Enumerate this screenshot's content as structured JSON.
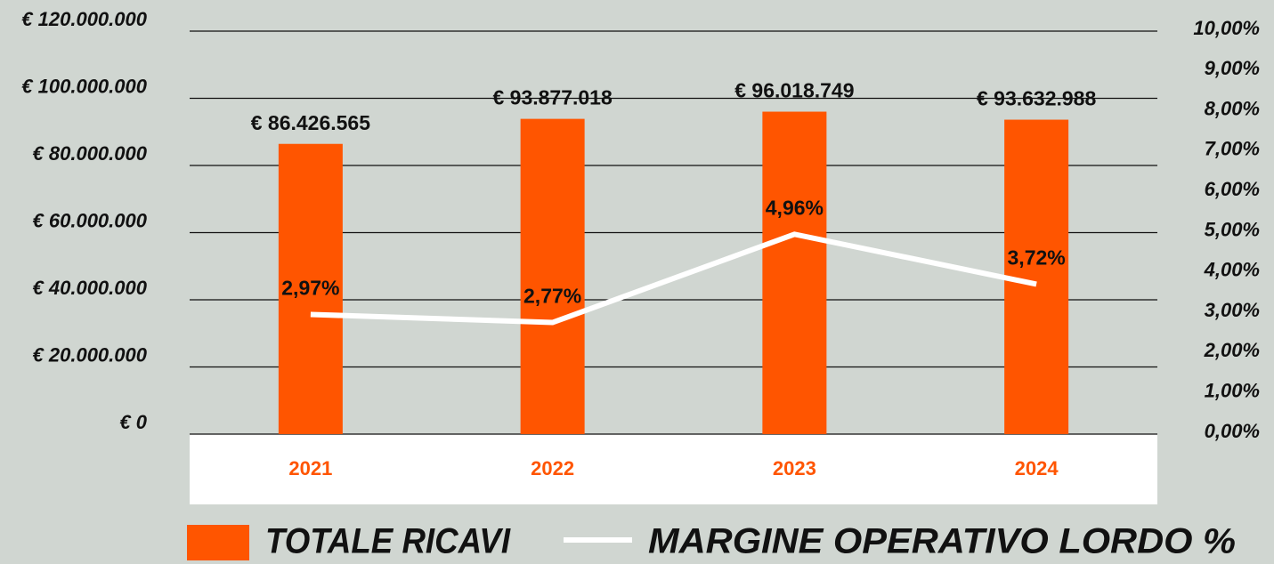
{
  "chart_data": {
    "type": "combo",
    "categories": [
      "2021",
      "2022",
      "2023",
      "2024"
    ],
    "series": [
      {
        "name": "TOTALE RICAVI",
        "type": "bar",
        "color": "#ff5500",
        "values": [
          86426565,
          93877018,
          96018749,
          93632988
        ],
        "value_labels": [
          "€ 86.426.565",
          "€ 93.877.018",
          "€ 96.018.749",
          "€ 93.632.988"
        ]
      },
      {
        "name": "MARGINE OPERATIVO LORDO %",
        "type": "line",
        "axis": "y2",
        "color": "#ffffff",
        "values": [
          2.97,
          2.77,
          4.96,
          3.72
        ],
        "value_labels": [
          "2,97%",
          "2,77%",
          "4,96%",
          "3,72%"
        ]
      }
    ],
    "ylim": [
      0,
      120000000
    ],
    "yticks": [
      {
        "value": 0,
        "label": "€ 0"
      },
      {
        "value": 20000000,
        "label": "€ 20.000.000"
      },
      {
        "value": 40000000,
        "label": "€ 40.000.000"
      },
      {
        "value": 60000000,
        "label": "€ 60.000.000"
      },
      {
        "value": 80000000,
        "label": "€ 80.000.000"
      },
      {
        "value": 100000000,
        "label": "€ 100.000.000"
      },
      {
        "value": 120000000,
        "label": "€ 120.000.000"
      }
    ],
    "y2lim": [
      0,
      10
    ],
    "y2ticks": [
      {
        "value": 0,
        "label": "0,00%"
      },
      {
        "value": 1,
        "label": "1,00%"
      },
      {
        "value": 2,
        "label": "2,00%"
      },
      {
        "value": 3,
        "label": "3,00%"
      },
      {
        "value": 4,
        "label": "4,00%"
      },
      {
        "value": 5,
        "label": "5,00%"
      },
      {
        "value": 6,
        "label": "6,00%"
      },
      {
        "value": 7,
        "label": "7,00%"
      },
      {
        "value": 8,
        "label": "8,00%"
      },
      {
        "value": 9,
        "label": "9,00%"
      },
      {
        "value": 10,
        "label": "10,00%"
      }
    ],
    "grid": true,
    "legend": "bottom"
  }
}
